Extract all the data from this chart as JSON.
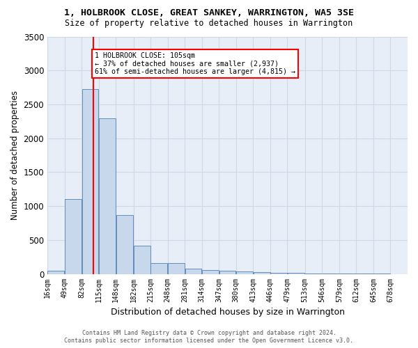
{
  "title": "1, HOLBROOK CLOSE, GREAT SANKEY, WARRINGTON, WA5 3SE",
  "subtitle": "Size of property relative to detached houses in Warrington",
  "xlabel": "Distribution of detached houses by size in Warrington",
  "ylabel": "Number of detached properties",
  "bar_color": "#c8d8ec",
  "bar_edge_color": "#5080b0",
  "background_color": "#e8eef8",
  "grid_color": "#d0d8e8",
  "bin_edges": [
    16,
    49,
    82,
    115,
    148,
    182,
    215,
    248,
    281,
    314,
    347,
    380,
    413,
    446,
    479,
    513,
    546,
    579,
    612,
    645,
    678
  ],
  "bar_heights": [
    50,
    1100,
    2730,
    2290,
    870,
    420,
    160,
    160,
    80,
    55,
    48,
    40,
    30,
    18,
    12,
    8,
    5,
    4,
    2,
    2
  ],
  "x_tick_labels": [
    "16sqm",
    "49sqm",
    "82sqm",
    "115sqm",
    "148sqm",
    "182sqm",
    "215sqm",
    "248sqm",
    "281sqm",
    "314sqm",
    "347sqm",
    "380sqm",
    "413sqm",
    "446sqm",
    "479sqm",
    "513sqm",
    "546sqm",
    "579sqm",
    "612sqm",
    "645sqm",
    "678sqm"
  ],
  "ylim": [
    0,
    3500
  ],
  "yticks": [
    0,
    500,
    1000,
    1500,
    2000,
    2500,
    3000,
    3500
  ],
  "red_line_x": 105,
  "annotation_line1": "1 HOLBROOK CLOSE: 105sqm",
  "annotation_line2": "← 37% of detached houses are smaller (2,937)",
  "annotation_line3": "61% of semi-detached houses are larger (4,815) →",
  "footer_line1": "Contains HM Land Registry data © Crown copyright and database right 2024.",
  "footer_line2": "Contains public sector information licensed under the Open Government Licence v3.0."
}
